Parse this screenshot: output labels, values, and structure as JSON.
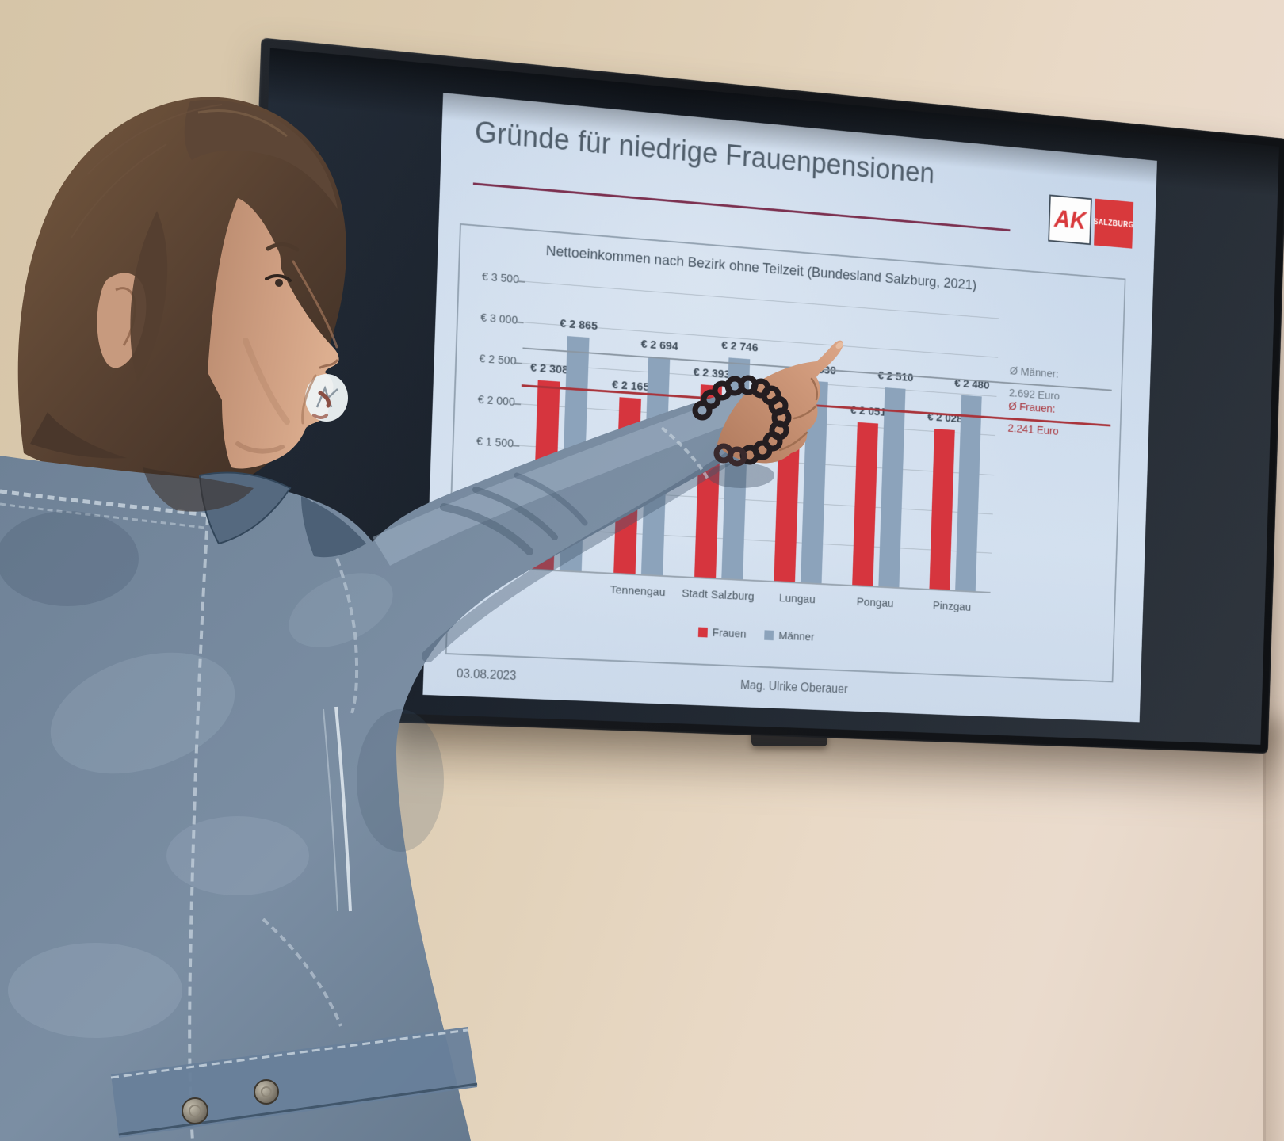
{
  "scene": {
    "wall_color": "#dccbb0",
    "tv_bezel_color": "#15171b",
    "screen_color": "#242b34",
    "denim_jacket_color": "#7b8ea3",
    "hair_color": "#5d4636",
    "skin_color": "#c99c82"
  },
  "slide": {
    "title": "Gründe für niedrige Frauenpensionen",
    "logo": {
      "ak": "AK",
      "region": "SALZBURG"
    },
    "footer": {
      "date": "03.08.2023",
      "author": "Mag. Ulrike Oberauer"
    }
  },
  "chart_data": {
    "type": "bar",
    "title": "Nettoeinkommen nach Bezirk ohne Teilzeit (Bundesland Salzburg, 2021)",
    "categories": [
      "",
      "Tennengau",
      "Stadt Salzburg",
      "Lungau",
      "Pongau",
      "Pinzgau"
    ],
    "notes": "First category label and the Lungau Frauen value label are hidden behind the presenter's arm/hand; occluded values estimated from bar heights.",
    "series": [
      {
        "name": "Frauen",
        "color": "#d6353e",
        "values": [
          2308,
          2165,
          2393,
          1990,
          2051,
          2028
        ],
        "labels": [
          "€ 2 308",
          "€ 2 165",
          "€ 2 393",
          null,
          "€ 2 051",
          "€ 2 028"
        ]
      },
      {
        "name": "Männer",
        "color": "#8ca3bb",
        "values": [
          2865,
          2694,
          2746,
          2530,
          2510,
          2480
        ],
        "labels": [
          "€ 2 865",
          "€ 2 694",
          "€ 2 746",
          "€ 2 530",
          "€ 2 510",
          "€ 2 480"
        ]
      }
    ],
    "y_axis": {
      "min": 0,
      "max": 3500,
      "ticks": [
        {
          "label": "€ 3 500",
          "value": 3500
        },
        {
          "label": "€ 3 000",
          "value": 3000
        },
        {
          "label": "€ 2 500",
          "value": 2500
        },
        {
          "label": "€ 2 000",
          "value": 2000
        },
        {
          "label": "€ 1 500",
          "value": 1500
        }
      ],
      "gridline_values": [
        3500,
        3000,
        2500,
        2000,
        1500,
        1000,
        500,
        0
      ]
    },
    "averages": [
      {
        "label": "Ø Männer:",
        "value_label": "2.692 Euro",
        "value": 2692,
        "line_color": "#8b97a3",
        "text_color": "#6e7a86"
      },
      {
        "label": "Ø Frauen:",
        "value_label": "2.241 Euro",
        "value": 2241,
        "line_color": "#a9343b",
        "text_color": "#a9343b"
      }
    ],
    "legend": [
      {
        "label": "Frauen",
        "color": "#d6353e"
      },
      {
        "label": "Männer",
        "color": "#8ca3bb"
      }
    ],
    "grid": true,
    "legend_position": "bottom"
  }
}
